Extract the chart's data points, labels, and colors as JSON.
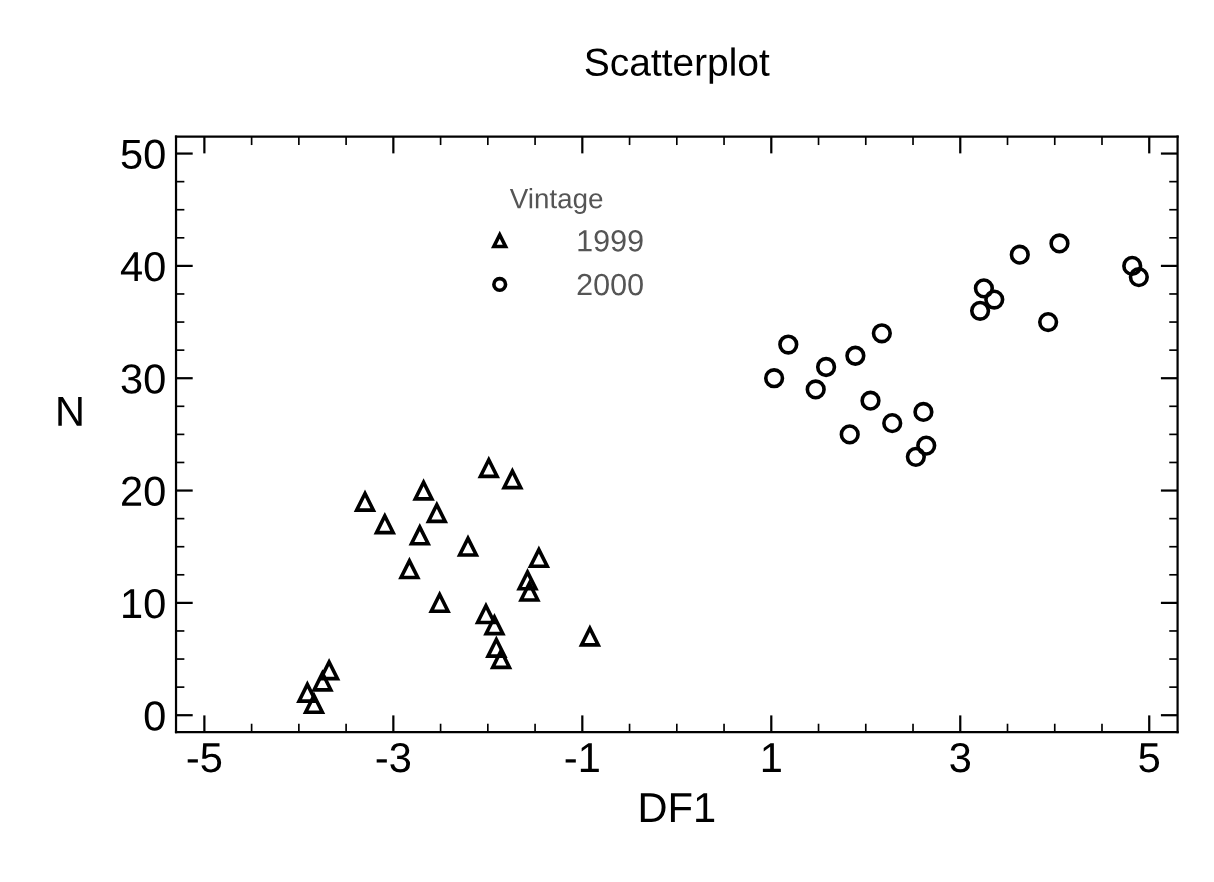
{
  "chart_data": {
    "type": "scatter",
    "title": "Scatterplot",
    "xlabel": "DF1",
    "ylabel": "N",
    "legend_title": "Vintage",
    "legend": "top",
    "grid": false,
    "xlim": [
      -5.3,
      5.3
    ],
    "xticks": [
      -5,
      -3,
      -1,
      1,
      3,
      5
    ],
    "ylim": [
      -1.5,
      51.5
    ],
    "yticks": [
      0,
      10,
      20,
      30,
      40,
      50
    ],
    "series": [
      {
        "name": "1999",
        "color": "#000000",
        "marker": "triangle",
        "x": [
          -3.91,
          -3.84,
          -3.75,
          -3.68,
          -3.3,
          -3.09,
          -2.83,
          -2.72,
          -2.68,
          -2.51,
          -2.54,
          -2.21,
          -2.02,
          -1.99,
          -1.93,
          -1.91,
          -1.86,
          -1.74,
          -1.58,
          -1.56,
          -1.46,
          -0.92
        ],
        "values": [
          2,
          1,
          3,
          4,
          19,
          17,
          13,
          16,
          20,
          10,
          18,
          15,
          9,
          22,
          8,
          6,
          5,
          21,
          12,
          11,
          14,
          7
        ]
      },
      {
        "name": "2000",
        "color": "#000000",
        "marker": "circle",
        "x": [
          1.03,
          1.18,
          1.47,
          1.58,
          1.83,
          1.89,
          2.05,
          2.17,
          2.28,
          2.53,
          2.61,
          2.64,
          3.21,
          3.25,
          3.36,
          3.63,
          3.93,
          4.05,
          4.82,
          4.89
        ],
        "values": [
          30,
          33,
          29,
          31,
          25,
          32,
          28,
          34,
          26,
          23,
          27,
          24,
          36,
          38,
          37,
          41,
          35,
          42,
          40,
          39
        ]
      }
    ]
  }
}
